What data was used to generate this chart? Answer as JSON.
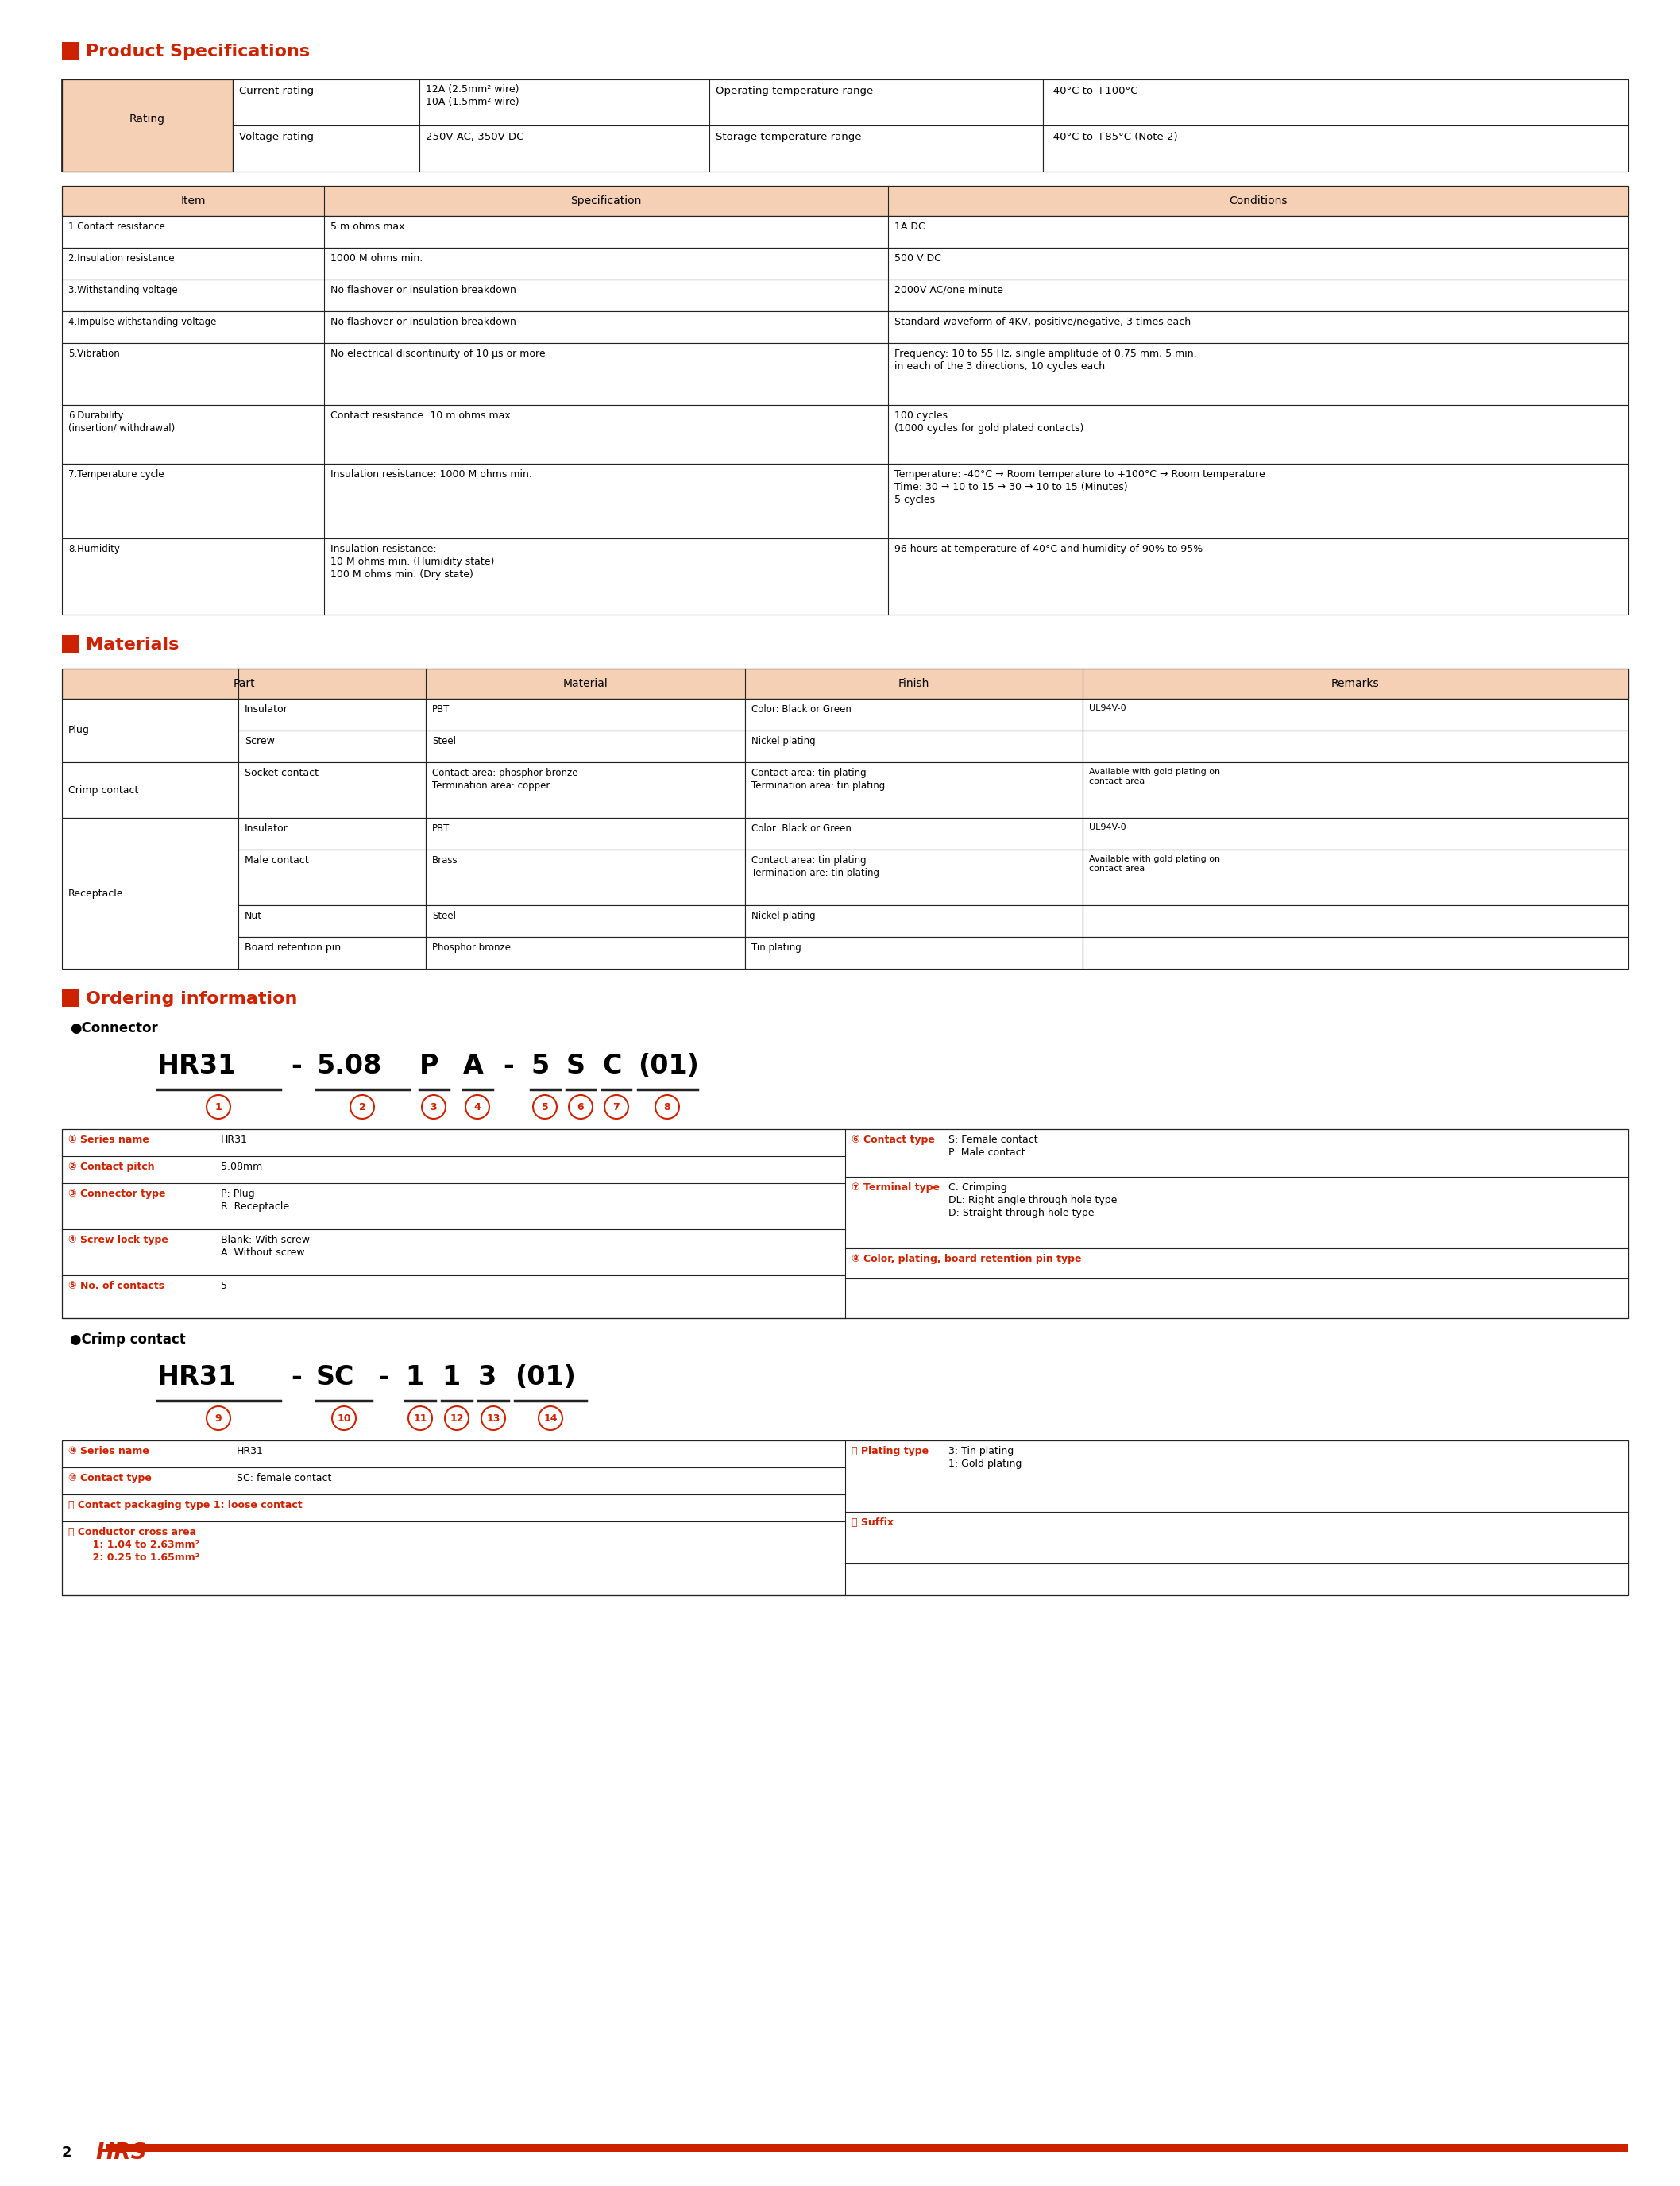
{
  "bg_color": "#ffffff",
  "red_color": "#cc2200",
  "header_bg": "#f5d0b5",
  "border_color": "#222222",
  "section1_title": "Product Specifications",
  "section2_title": "Materials",
  "section3_title": "Ordering information",
  "spec_rows": [
    [
      "1.Contact resistance",
      "5 m ohms max.",
      "1A DC"
    ],
    [
      "2.Insulation resistance",
      "1000 M ohms min.",
      "500 V DC"
    ],
    [
      "3.Withstanding voltage",
      "No flashover or insulation breakdown",
      "2000V AC/one minute"
    ],
    [
      "4.Impulse withstanding voltage",
      "No flashover or insulation breakdown",
      "Standard waveform of 4KV, positive/negative, 3 times each"
    ],
    [
      "5.Vibration",
      "No electrical discontinuity of 10 μs or more",
      "Frequency: 10 to 55 Hz, single amplitude of 0.75 mm, 5 min.\nin each of the 3 directions, 10 cycles each"
    ],
    [
      "6.Durability\n(insertion/ withdrawal)",
      "Contact resistance: 10 m ohms max.",
      "100 cycles\n(1000 cycles for gold plated contacts)"
    ],
    [
      "7.Temperature cycle",
      "Insulation resistance: 1000 M ohms min.",
      "Temperature: -40°C → Room temperature to +100°C → Room temperature\nTime: 30 → 10 to 15 → 30 → 10 to 15 (Minutes)\n5 cycles"
    ],
    [
      "8.Humidity",
      "Insulation resistance:\n10 M ohms min. (Humidity state)\n100 M ohms min. (Dry state)",
      "96 hours at temperature of 40°C and humidity of 90% to 95%"
    ]
  ],
  "mat_data_rows": [
    [
      "Insulator",
      "PBT",
      "Color: Black or Green",
      "UL94V-0"
    ],
    [
      "Screw",
      "Steel",
      "Nickel plating",
      ""
    ],
    [
      "Socket contact",
      "Contact area: phosphor bronze\nTermination area: copper",
      "Contact area: tin plating\nTermination area: tin plating",
      "Available with gold plating on\ncontact area"
    ],
    [
      "Insulator",
      "PBT",
      "Color: Black or Green",
      "UL94V-0"
    ],
    [
      "Male contact",
      "Brass",
      "Contact area: tin plating\nTermination are: tin plating",
      "Available with gold plating on\ncontact area"
    ],
    [
      "Nut",
      "Steel",
      "Nickel plating",
      ""
    ],
    [
      "Board retention pin",
      "Phosphor bronze",
      "Tin plating",
      ""
    ]
  ]
}
